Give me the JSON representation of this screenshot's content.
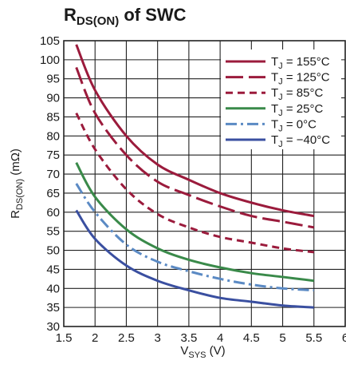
{
  "title": {
    "main": "R",
    "sub": "DS(ON)",
    "rest": " of SWC"
  },
  "chart_data": {
    "type": "line",
    "title": "RDS(ON) of SWC",
    "xlabel": {
      "main": "V",
      "sub": "SYS",
      "rest": " (V)"
    },
    "ylabel": {
      "main": "R",
      "sub": "DS(ON)",
      "rest": " (mΩ)"
    },
    "xlim": [
      1.5,
      6
    ],
    "ylim": [
      30,
      105
    ],
    "xticks": [
      "1.5",
      "2",
      "2.5",
      "3",
      "3.5",
      "4",
      "4.5",
      "5",
      "5.5",
      "6"
    ],
    "yticks": [
      "30",
      "35",
      "40",
      "45",
      "50",
      "55",
      "60",
      "65",
      "70",
      "75",
      "80",
      "85",
      "90",
      "95",
      "100",
      "105"
    ],
    "grid": true,
    "legend_position": "top-right",
    "x": [
      1.7,
      2.0,
      2.5,
      3.0,
      3.5,
      4.0,
      4.5,
      5.0,
      5.5
    ],
    "series": [
      {
        "name": "TJ = 155°C",
        "label": {
          "main": "T",
          "sub": "J",
          "rest": " = 155°C"
        },
        "color": "#9b1b3c",
        "dash": "solid",
        "values": [
          104,
          92,
          80,
          72.5,
          68.5,
          65,
          62.5,
          60.5,
          59
        ]
      },
      {
        "name": "TJ = 125°C",
        "label": {
          "main": "T",
          "sub": "J",
          "rest": " = 125°C"
        },
        "color": "#9b1b3c",
        "dash": "longdash",
        "values": [
          98,
          86,
          75,
          68,
          64.5,
          61.5,
          59,
          57.5,
          56
        ]
      },
      {
        "name": "TJ = 85°C",
        "label": {
          "main": "T",
          "sub": "J",
          "rest": " = 85°C"
        },
        "color": "#9b1b3c",
        "dash": "shortdash",
        "values": [
          86,
          76.5,
          66,
          59.5,
          56,
          53.5,
          52,
          50.5,
          49.5
        ]
      },
      {
        "name": "TJ = 25°C",
        "label": {
          "main": "T",
          "sub": "J",
          "rest": " = 25°C"
        },
        "color": "#3a8a4a",
        "dash": "solid",
        "values": [
          73,
          64,
          55.5,
          50.5,
          47.5,
          45.5,
          44,
          43,
          42
        ]
      },
      {
        "name": "TJ = 0°C",
        "label": {
          "main": "T",
          "sub": "J",
          "rest": " = 0°C"
        },
        "color": "#5b8ac4",
        "dash": "dashdot",
        "values": [
          67.5,
          60,
          51.5,
          47,
          44.5,
          42.5,
          41,
          40,
          39.5
        ]
      },
      {
        "name": "TJ = −40°C",
        "label": {
          "main": "T",
          "sub": "J",
          "rest": " = −40°C"
        },
        "color": "#3a4fa0",
        "dash": "solid",
        "values": [
          60.5,
          53,
          46,
          42,
          39.5,
          37.5,
          36.5,
          35.5,
          35
        ]
      }
    ]
  }
}
